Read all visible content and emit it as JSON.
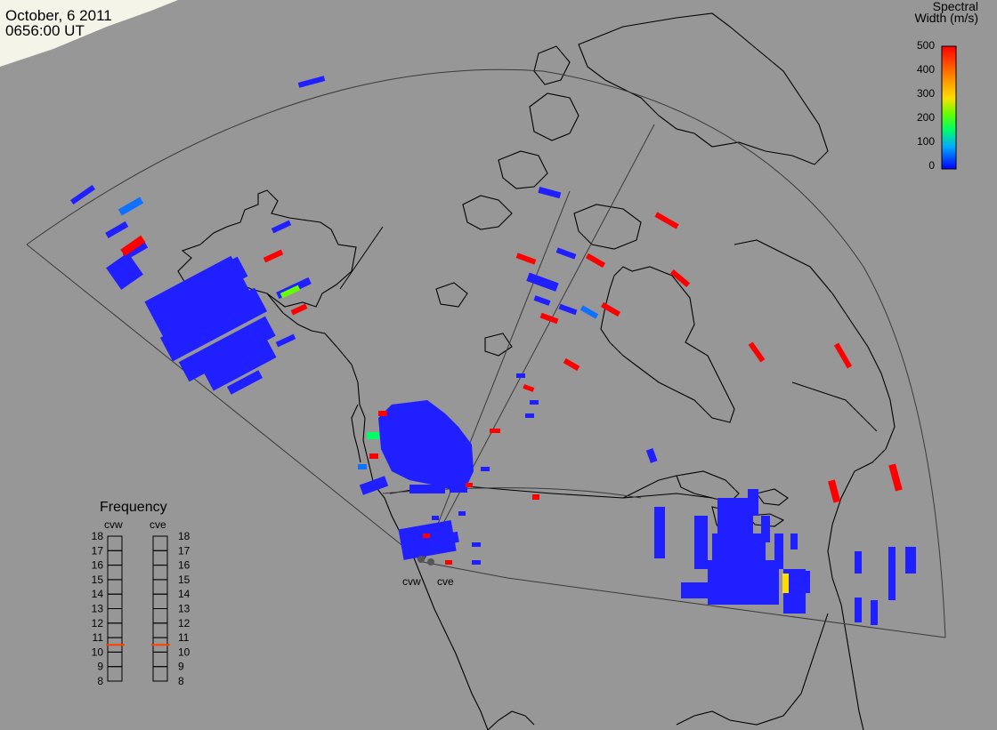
{
  "header": {
    "date": "October, 6 2011",
    "time": "0656:00 UT"
  },
  "colorbar": {
    "title_line1": "Spectral",
    "title_line2": "Width (m/s)",
    "ticks": [
      "500",
      "400",
      "300",
      "200",
      "100",
      "0"
    ],
    "range": [
      0,
      500
    ],
    "colors": [
      "#0000ff",
      "#00aaff",
      "#00ff66",
      "#66ff00",
      "#ffdd00",
      "#ff8800",
      "#ff0000"
    ]
  },
  "radars": [
    {
      "code": "cvw"
    },
    {
      "code": "cve"
    }
  ],
  "frequency_panel": {
    "title": "Frequency",
    "columns": [
      "cvw",
      "cve"
    ],
    "scale": [
      "18",
      "17",
      "16",
      "15",
      "14",
      "13",
      "12",
      "11",
      "10",
      "9",
      "8"
    ],
    "current_mhz": {
      "cvw": 10.5,
      "cve": 10.5
    },
    "marker_color": "#ff4000"
  },
  "map_colors": {
    "background": "#979797",
    "coastline": "#000000",
    "fov_outline": "#3a3a3a",
    "night_shade": "#f4f4e8"
  }
}
